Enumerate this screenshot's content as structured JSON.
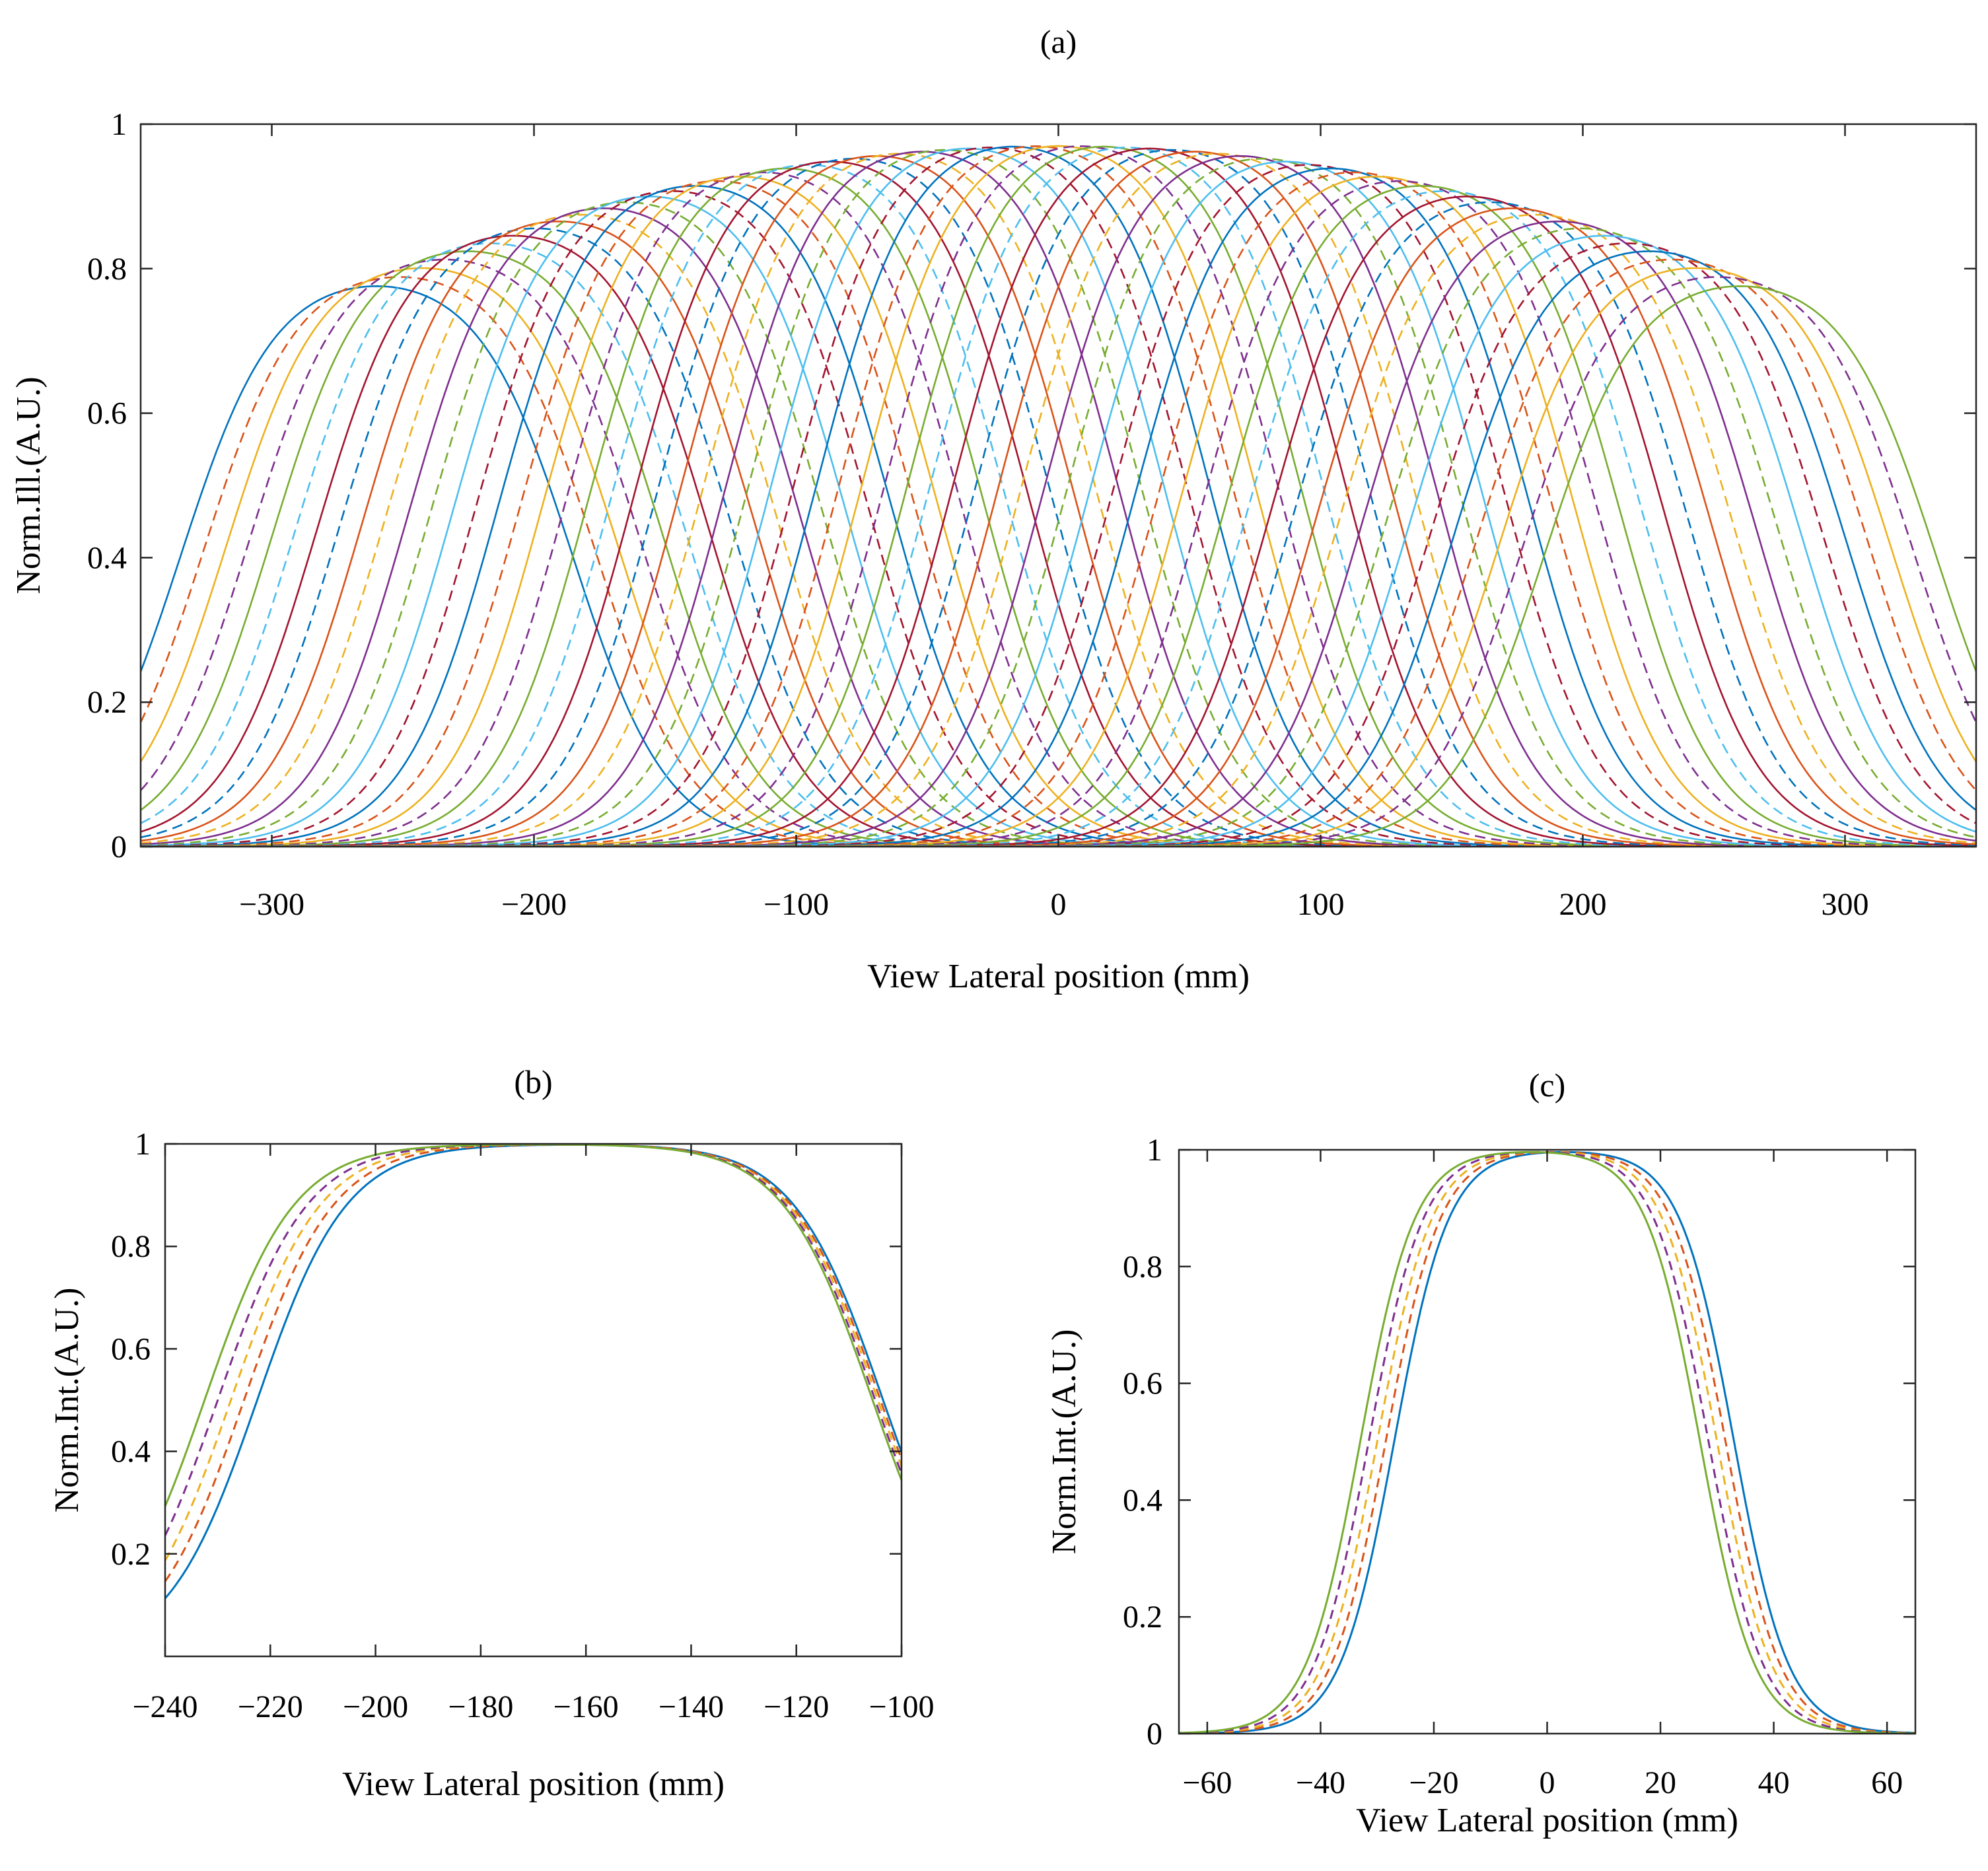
{
  "figure": {
    "panel_labels": [
      "(a)",
      "(b)",
      "(c)"
    ]
  },
  "colors": {
    "blue": "#0072BD",
    "orange": "#D95319",
    "yellow": "#EDB120",
    "purple": "#7E2F8E",
    "green": "#77AC30",
    "cyan": "#4DBEEE",
    "red": "#A2142F"
  },
  "chart_data": [
    {
      "panel": "(a)",
      "type": "line",
      "title": "(a)",
      "xlabel": "View Lateral position (mm)",
      "ylabel": "Norm.Ill.(A.U.)",
      "xlim": [
        -350,
        350
      ],
      "ylim": [
        0,
        1
      ],
      "xticks": [
        -300,
        -200,
        -100,
        0,
        100,
        200,
        300
      ],
      "xticklabels": [
        "−300",
        "−200",
        "−100",
        "0",
        "100",
        "200",
        "300"
      ],
      "yticks": [
        0,
        0.2,
        0.4,
        0.6,
        0.8,
        1
      ],
      "yticklabels": [
        "0",
        "0.2",
        "0.4",
        "0.6",
        "0.8",
        "1"
      ],
      "grid": false,
      "description": "Family of ~61 flat-top illumination profiles, centers from -260 to 260 mm, full width ~150 mm, peak following a dome envelope (0.80 at edges, 1.0 at center); alternating solid and dashed multi-colour lines",
      "series_family": {
        "count": 61,
        "center_start": -260,
        "center_end": 260,
        "half_width": 75,
        "edge_softness": 18,
        "envelope_center_peak": 1.0,
        "envelope_edge_peak": 0.8,
        "styles": [
          "solid",
          "dashed"
        ],
        "color_cycle": [
          "#0072BD",
          "#D95319",
          "#EDB120",
          "#7E2F8E",
          "#77AC30",
          "#4DBEEE",
          "#A2142F"
        ]
      }
    },
    {
      "panel": "(b)",
      "type": "line",
      "title": "(b)",
      "xlabel": "View Lateral position (mm)",
      "ylabel": "Norm.Int.(A.U.)",
      "xlim": [
        -240,
        -100
      ],
      "ylim": [
        0,
        1
      ],
      "xticks": [
        -240,
        -220,
        -200,
        -180,
        -160,
        -140,
        -120,
        -100
      ],
      "xticklabels": [
        "−240",
        "−220",
        "−200",
        "−180",
        "−160",
        "−140",
        "−120",
        "−100"
      ],
      "yticks": [
        0.2,
        0.4,
        0.6,
        0.8,
        1
      ],
      "yticklabels": [
        "0.2",
        "0.4",
        "0.6",
        "0.8",
        "1"
      ],
      "grid": false,
      "series": [
        {
          "name": "blue",
          "color": "#0072BD",
          "style": "solid",
          "center": -163,
          "half_width": 59.5,
          "softness": 8.5
        },
        {
          "name": "orange",
          "color": "#D95319",
          "style": "dashed",
          "center": -164.5,
          "half_width": 60.5,
          "softness": 8.5
        },
        {
          "name": "yellow",
          "color": "#EDB120",
          "style": "dashed",
          "center": -166,
          "half_width": 61.5,
          "softness": 8.5
        },
        {
          "name": "purple",
          "color": "#7E2F8E",
          "style": "dashed",
          "center": -167.5,
          "half_width": 62.5,
          "softness": 8.5
        },
        {
          "name": "green",
          "color": "#77AC30",
          "style": "solid",
          "center": -169,
          "half_width": 63.5,
          "softness": 8.5
        }
      ]
    },
    {
      "panel": "(c)",
      "type": "line",
      "title": "(c)",
      "xlabel": "View Lateral position (mm)",
      "ylabel": "Norm.Int.(A.U.)",
      "xlim": [
        -65,
        65
      ],
      "ylim": [
        0,
        1
      ],
      "xticks": [
        -60,
        -40,
        -20,
        0,
        20,
        40,
        60
      ],
      "xticklabels": [
        "−60",
        "−40",
        "−20",
        "0",
        "20",
        "40",
        "60"
      ],
      "yticks": [
        0,
        0.2,
        0.4,
        0.6,
        0.8,
        1
      ],
      "yticklabels": [
        "0",
        "0.2",
        "0.4",
        "0.6",
        "0.8",
        "1"
      ],
      "grid": false,
      "series": [
        {
          "name": "blue",
          "color": "#0072BD",
          "style": "solid",
          "center": 3,
          "half_width": 30,
          "softness": 4.8
        },
        {
          "name": "orange",
          "color": "#D95319",
          "style": "dashed",
          "center": 1.5,
          "half_width": 30,
          "softness": 4.8
        },
        {
          "name": "yellow",
          "color": "#EDB120",
          "style": "dashed",
          "center": 0,
          "half_width": 30,
          "softness": 4.8
        },
        {
          "name": "purple",
          "color": "#7E2F8E",
          "style": "dashed",
          "center": -1.5,
          "half_width": 30,
          "softness": 4.8
        },
        {
          "name": "green",
          "color": "#77AC30",
          "style": "solid",
          "center": -3,
          "half_width": 30,
          "softness": 4.8
        }
      ]
    }
  ]
}
